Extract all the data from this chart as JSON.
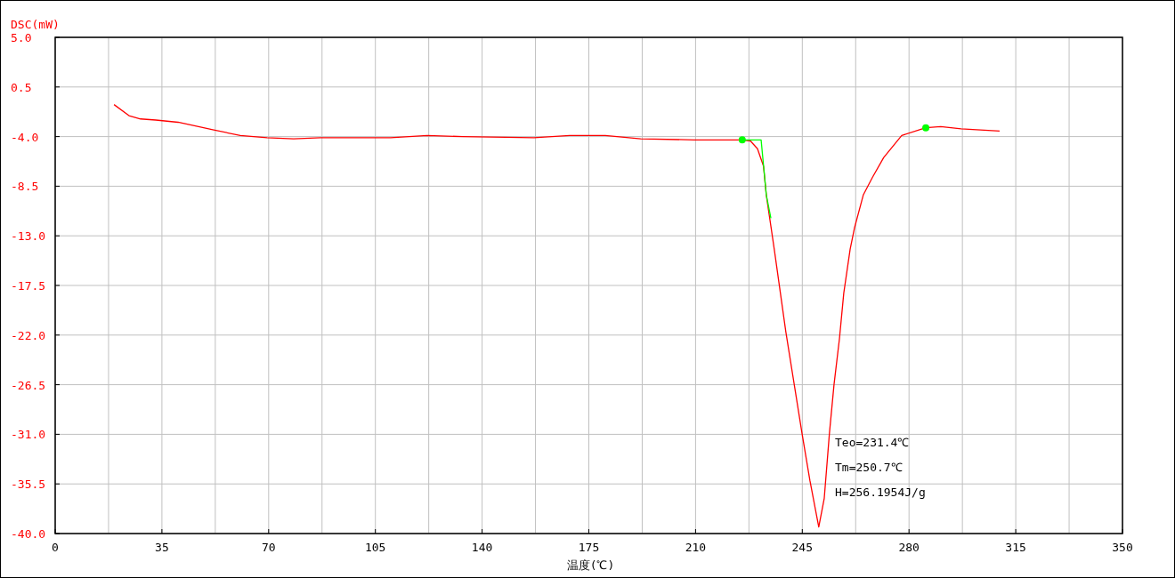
{
  "chart_data": {
    "type": "line",
    "xlabel": "温度(℃)",
    "ylabel": "DSC(mW)",
    "xlim": [
      0,
      350
    ],
    "ylim": [
      -40,
      5
    ],
    "xticks": [
      0,
      {
        "value": 17.5,
        "label": null
      },
      35,
      {
        "value": 52.5,
        "label": null
      },
      70,
      {
        "value": 87.5,
        "label": null
      },
      105,
      {
        "value": 122.5,
        "label": null
      },
      140,
      {
        "value": 157.5,
        "label": null
      },
      175,
      {
        "value": 192.5,
        "label": null
      },
      210,
      {
        "value": 227.5,
        "label": null
      },
      245,
      {
        "value": 262.5,
        "label": null
      },
      280,
      {
        "value": 297.5,
        "label": null
      },
      315,
      {
        "value": 332.5,
        "label": null
      },
      350
    ],
    "yticks": [
      {
        "value": -40,
        "label": "-40.0"
      },
      {
        "value": -35.5,
        "label": "-35.5"
      },
      {
        "value": -31,
        "label": "-31.0"
      },
      {
        "value": -26.5,
        "label": "-26.5"
      },
      {
        "value": -22,
        "label": "-22.0"
      },
      {
        "value": -17.5,
        "label": "-17.5"
      },
      {
        "value": -13,
        "label": "-13.0"
      },
      {
        "value": -8.5,
        "label": "-8.5"
      },
      {
        "value": -4,
        "label": "-4.0"
      },
      {
        "value": 0.5,
        "label": "0.5"
      },
      {
        "value": 5,
        "label": "5.0"
      }
    ],
    "grid": true,
    "series": [
      {
        "type": "line",
        "color": "#ff0000",
        "x": [
          19.3,
          24.2,
          28.0,
          33.0,
          40.3,
          52.0,
          60.7,
          69.5,
          78.2,
          87.0,
          98.7,
          110.0,
          122.0,
          133.7,
          157.0,
          168.7,
          180.4,
          192.0,
          209.6,
          225.3,
          228.0,
          230.3,
          232.3,
          233.2,
          235.8,
          239.6,
          242.6,
          244.9,
          247.5,
          250.4,
          252.2,
          253.9,
          255.4,
          257.2,
          258.6,
          260.7,
          262.1,
          265.0,
          268.0,
          271.7,
          277.6,
          285.5,
          290.4,
          297.1,
          309.7
        ],
        "values": [
          -1.1,
          -2.1,
          -2.4,
          -2.5,
          -2.7,
          -3.4,
          -3.9,
          -4.1,
          -4.2,
          -4.1,
          -4.1,
          -4.1,
          -3.9,
          -4.0,
          -4.1,
          -3.9,
          -3.9,
          -4.2,
          -4.3,
          -4.3,
          -4.4,
          -5.1,
          -6.7,
          -9.3,
          -14.2,
          -21.7,
          -26.9,
          -30.9,
          -35.2,
          -39.4,
          -36.8,
          -30.9,
          -26.5,
          -22.3,
          -18.2,
          -14.2,
          -12.3,
          -9.3,
          -7.7,
          -5.9,
          -3.9,
          -3.2,
          -3.1,
          -3.3,
          -3.5
        ]
      },
      {
        "type": "line",
        "color": "#00ff00",
        "x": [
          225.3,
          231.5,
          233.2,
          234.7
        ],
        "values": [
          -4.3,
          -4.3,
          -9.3,
          -11.4
        ]
      },
      {
        "type": "scatter",
        "color": "#00ff00",
        "marker": "circle",
        "x": [
          225.3,
          285.5
        ],
        "values": [
          -4.3,
          -3.2
        ]
      }
    ],
    "annotations": [
      "Teo=231.4℃",
      "Tm=250.7℃",
      "H=256.1954J/g"
    ]
  }
}
